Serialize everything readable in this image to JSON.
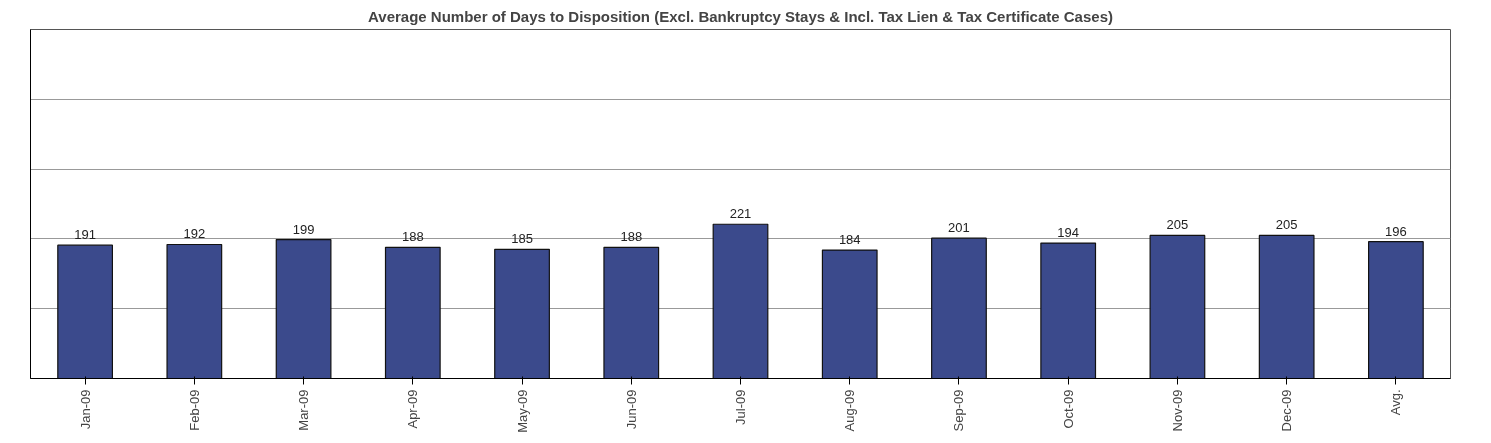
{
  "chart_data": {
    "type": "bar",
    "title": "Average Number of Days to Disposition (Excl. Bankruptcy Stays & Incl. Tax Lien & Tax Certificate Cases)",
    "categories": [
      "Jan-09",
      "Feb-09",
      "Mar-09",
      "Apr-09",
      "May-09",
      "Jun-09",
      "Jul-09",
      "Aug-09",
      "Sep-09",
      "Oct-09",
      "Nov-09",
      "Dec-09",
      "Avg."
    ],
    "values": [
      191,
      192,
      199,
      188,
      185,
      188,
      221,
      184,
      201,
      194,
      205,
      205,
      196
    ],
    "color": "#3b4a8c",
    "data_labels": true,
    "ylim": [
      0,
      500
    ],
    "yticks": [
      {
        "value": 0,
        "label": null
      },
      {
        "value": 100,
        "label": null
      },
      {
        "value": 200,
        "label": null
      },
      {
        "value": 300,
        "label": null
      },
      {
        "value": 400,
        "label": null
      },
      {
        "value": 500,
        "label": null
      }
    ],
    "tick_labels": "x",
    "grid": "y"
  }
}
